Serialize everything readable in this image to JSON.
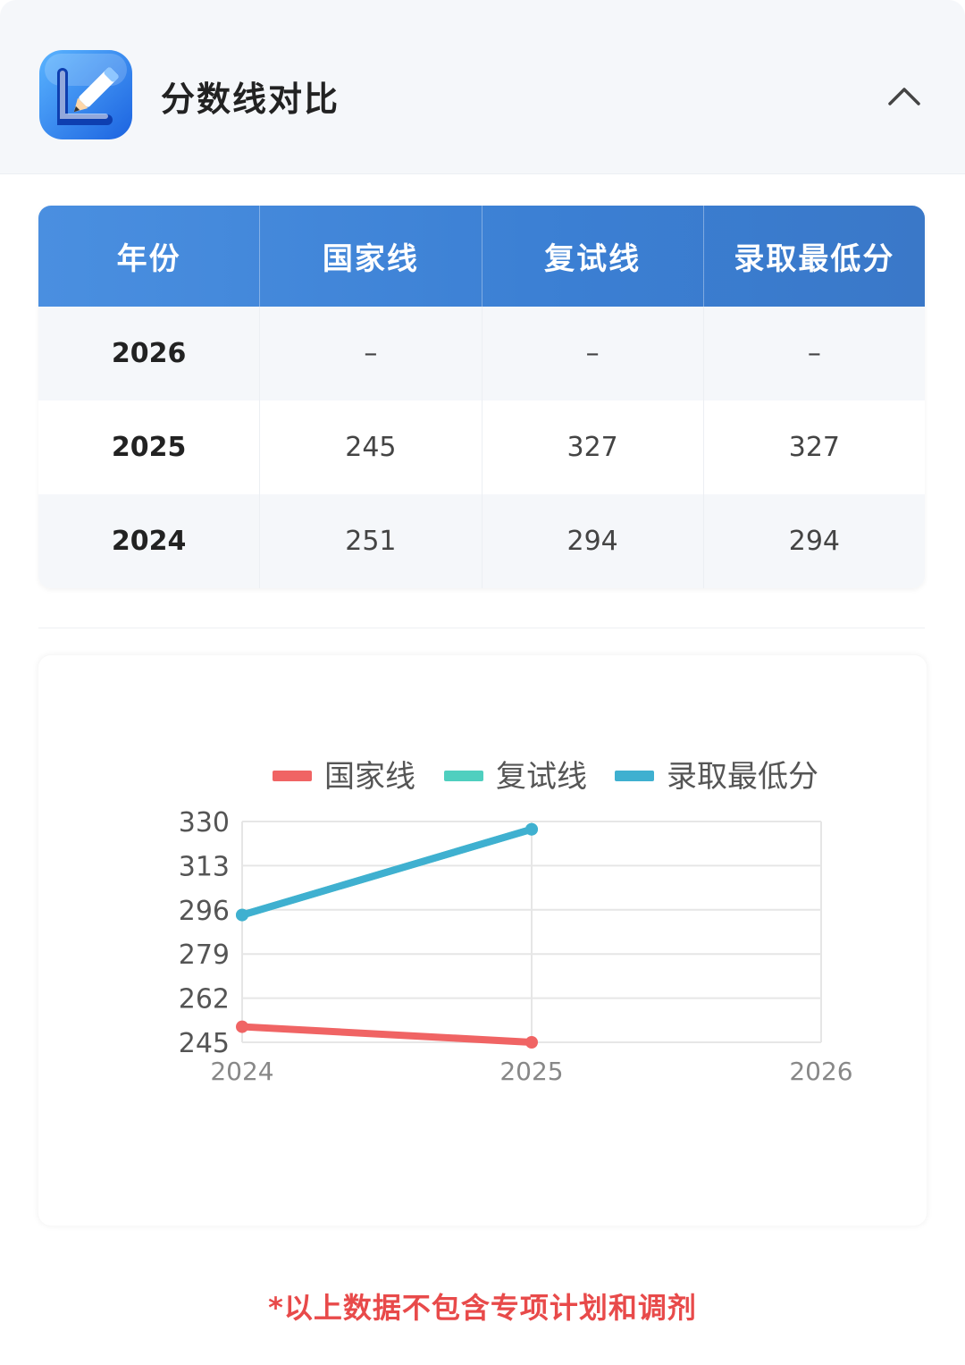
{
  "header": {
    "title": "分数线对比",
    "app_icon": "pencil-icon",
    "collapse_icon": "chevron-up-icon"
  },
  "table": {
    "columns": [
      "年份",
      "国家线",
      "复试线",
      "录取最低分"
    ],
    "rows": [
      [
        "2026",
        "–",
        "–",
        "–"
      ],
      [
        "2025",
        "245",
        "327",
        "327"
      ],
      [
        "2024",
        "251",
        "294",
        "294"
      ]
    ]
  },
  "chart_data": {
    "type": "line",
    "x": [
      "2024",
      "2025",
      "2026"
    ],
    "series": [
      {
        "name": "国家线",
        "color": "#f06464",
        "values": [
          251,
          245,
          null
        ]
      },
      {
        "name": "复试线",
        "color": "#4fcfbf",
        "values": [
          294,
          327,
          null
        ]
      },
      {
        "name": "录取最低分",
        "color": "#3fb0d0",
        "values": [
          294,
          327,
          null
        ]
      }
    ],
    "yticks": [
      "330",
      "313",
      "296",
      "279",
      "262",
      "245"
    ],
    "ylim": [
      245,
      330
    ],
    "grid": true,
    "legend": "top"
  },
  "colors": {
    "header_bg": "#f5f7fa",
    "table_header": "#4a8fe0",
    "footnote": "#e84a4a"
  },
  "footnote": "*以上数据不包含专项计划和调剂"
}
